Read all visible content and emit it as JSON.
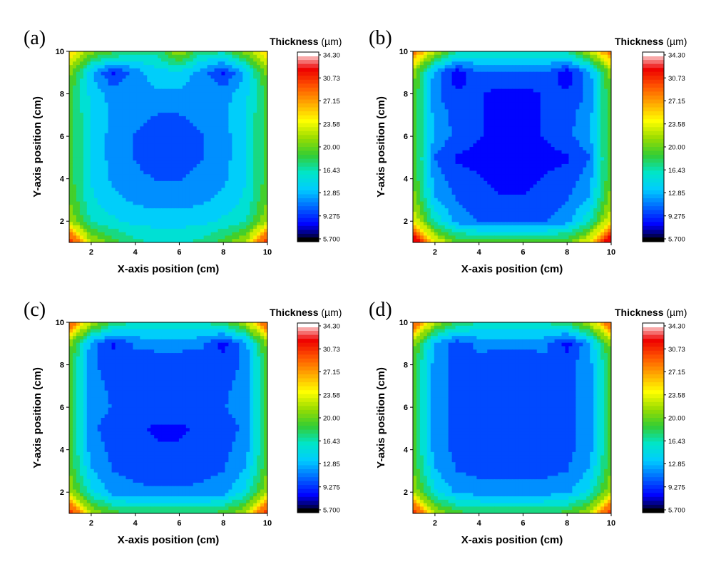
{
  "chart_data": {
    "type": "contour",
    "colorbar": {
      "title": "Thickness",
      "unit": "(µm)",
      "levels": [
        "34.30",
        "30.73",
        "27.15",
        "23.58",
        "20.00",
        "16.43",
        "12.85",
        "9.275",
        "5.700"
      ],
      "min": 5.7,
      "max": 34.3,
      "stops": [
        "#000000",
        "#0000ff",
        "#0066ff",
        "#00ccff",
        "#00e5c8",
        "#33cc33",
        "#99dd00",
        "#ffff00",
        "#ffaa00",
        "#ff5500",
        "#ee0000",
        "#ffffff"
      ]
    },
    "xlabel": "X-axis position (cm)",
    "ylabel": "Y-axis position (cm)",
    "xlim": [
      1,
      10
    ],
    "ylim": [
      1,
      10
    ],
    "xticks": [
      2,
      4,
      6,
      8,
      10
    ],
    "yticks": [
      2,
      4,
      6,
      8,
      10
    ],
    "panels": [
      {
        "label": "(a)",
        "grid": [
          [
            32,
            22,
            19,
            17,
            16,
            16,
            17,
            19,
            22,
            32
          ],
          [
            22,
            16,
            15,
            14,
            14,
            14,
            14,
            15,
            16,
            22
          ],
          [
            20,
            15,
            13.5,
            12.5,
            12,
            12,
            12.5,
            13.5,
            15,
            20
          ],
          [
            19,
            14.5,
            12.5,
            11.5,
            11,
            11,
            11.5,
            12.5,
            14.5,
            19
          ],
          [
            19,
            14.5,
            12,
            11,
            10,
            10.5,
            11,
            12,
            14.5,
            19
          ],
          [
            19,
            14.5,
            12,
            11,
            10.5,
            10.5,
            11,
            12,
            14.5,
            19
          ],
          [
            19,
            14.5,
            12.5,
            11.5,
            11,
            11,
            11.5,
            12.5,
            14.5,
            19
          ],
          [
            19,
            14,
            12,
            12.5,
            12.5,
            12.5,
            12.5,
            12,
            14,
            19
          ],
          [
            21,
            13,
            9,
            12,
            14,
            14,
            12,
            9,
            13,
            21
          ],
          [
            25,
            21,
            19,
            17,
            17,
            22,
            17,
            17,
            21,
            25
          ]
        ]
      },
      {
        "label": "(b)",
        "grid": [
          [
            34,
            24,
            20,
            19,
            19,
            19,
            19,
            20,
            24,
            34
          ],
          [
            24,
            16,
            12,
            11,
            10.5,
            10.5,
            11,
            12,
            16,
            24
          ],
          [
            21,
            13,
            11,
            10,
            9.5,
            9.5,
            10,
            11,
            13,
            21
          ],
          [
            20,
            12,
            10,
            9.5,
            8.5,
            8.5,
            9.5,
            10,
            12,
            20
          ],
          [
            20,
            11,
            9,
            8.5,
            7.5,
            7.5,
            8.5,
            9,
            11,
            20
          ],
          [
            20,
            12.5,
            10.5,
            9.5,
            8.5,
            8.5,
            9.5,
            10.5,
            12.5,
            20
          ],
          [
            20,
            12,
            10.5,
            9.5,
            8.5,
            8.5,
            9.5,
            10.5,
            12,
            20
          ],
          [
            20,
            11.5,
            9.5,
            9.5,
            8.5,
            8.5,
            9.5,
            9.5,
            11.5,
            20
          ],
          [
            21,
            12,
            8,
            11,
            11,
            11,
            11,
            8,
            12,
            21
          ],
          [
            29,
            22,
            17,
            16,
            16,
            16,
            16,
            17,
            22,
            29
          ]
        ]
      },
      {
        "label": "(c)",
        "grid": [
          [
            32,
            22,
            19,
            18,
            18,
            18,
            18,
            19,
            22,
            32
          ],
          [
            22,
            15,
            12,
            11.5,
            11.5,
            11.5,
            11.5,
            12,
            15,
            22
          ],
          [
            20,
            13,
            11,
            10.5,
            10,
            10,
            10.5,
            11,
            13,
            20
          ],
          [
            19,
            12,
            10.5,
            10,
            9.5,
            9.5,
            10,
            10.5,
            12,
            19
          ],
          [
            19,
            11.5,
            10,
            9.5,
            9,
            9,
            9.5,
            10,
            11.5,
            19
          ],
          [
            19,
            12,
            11,
            10.5,
            10.5,
            10.5,
            10.5,
            11,
            12,
            19
          ],
          [
            19,
            12,
            10.5,
            10,
            9.5,
            9.5,
            10,
            10.5,
            12,
            19
          ],
          [
            19,
            11.5,
            10,
            10,
            9.5,
            9.5,
            10,
            10,
            11.5,
            19
          ],
          [
            21,
            12,
            9,
            11.5,
            12,
            12,
            11.5,
            8.5,
            12,
            21
          ],
          [
            30,
            22,
            18,
            16,
            16,
            16,
            16,
            18,
            22,
            30
          ]
        ]
      },
      {
        "label": "(d)",
        "grid": [
          [
            32,
            22,
            19,
            18,
            18,
            18,
            18,
            19,
            22,
            32
          ],
          [
            22,
            15,
            12.5,
            12,
            12,
            12,
            12,
            12.5,
            15,
            22
          ],
          [
            20,
            13,
            11,
            10.5,
            10.5,
            10.5,
            10.5,
            11,
            13,
            20
          ],
          [
            19,
            12,
            10.5,
            10,
            10,
            10,
            10,
            10.5,
            12,
            19
          ],
          [
            19,
            12,
            10.5,
            10,
            9.5,
            9.5,
            10,
            10.5,
            12,
            19
          ],
          [
            19,
            12,
            10.5,
            10,
            10,
            10,
            10,
            10.5,
            12,
            19
          ],
          [
            19,
            12,
            10.5,
            10,
            10,
            10,
            10,
            10.5,
            12,
            19
          ],
          [
            19,
            12,
            10.5,
            10.5,
            10,
            10,
            10.5,
            10.5,
            12,
            19
          ],
          [
            21,
            12.5,
            10,
            11.5,
            11.5,
            11.5,
            11.5,
            8.5,
            12.5,
            21
          ],
          [
            30,
            22,
            18,
            16.5,
            16.5,
            16.5,
            16.5,
            18,
            22,
            30
          ]
        ]
      }
    ]
  }
}
